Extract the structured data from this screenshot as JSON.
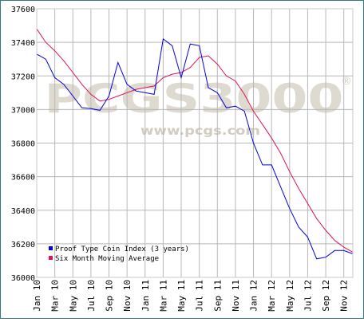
{
  "watermark": {
    "brand": "PCGS3000",
    "registered": "®",
    "url": "www.pcgs.com"
  },
  "colors": {
    "index_line": "#0000dd",
    "average_line": "#e0105a",
    "frame": "#2e7d7a",
    "grid": "#b8b8b8"
  },
  "chart_data": {
    "type": "line",
    "title": "",
    "xlabel": "",
    "ylabel": "",
    "ylim": [
      36000,
      37600
    ],
    "yticks": [
      36000,
      36200,
      36400,
      36600,
      36800,
      37000,
      37200,
      37400,
      37600
    ],
    "x_labels": [
      "Jan 10",
      "Mar 10",
      "May 10",
      "Jul 10",
      "Sep 10",
      "Nov 10",
      "Jan 11",
      "Mar 11",
      "May 11",
      "Jul 11",
      "Sep 11",
      "Nov 11",
      "Jan 12",
      "Mar 12",
      "May 12",
      "Jul 12",
      "Sep 12",
      "Nov 12"
    ],
    "grid": true,
    "legend_position": "bottom-left",
    "series": [
      {
        "name": "Proof Type Coin Index (3 years)",
        "color": "#0000dd",
        "values": [
          37330,
          37300,
          37190,
          37150,
          37080,
          37010,
          37005,
          36995,
          37080,
          37280,
          37150,
          37110,
          37100,
          37090,
          37420,
          37380,
          37190,
          37390,
          37380,
          37130,
          37100,
          37010,
          37020,
          36990,
          36800,
          36670,
          36670,
          36540,
          36410,
          36300,
          36240,
          36110,
          36120,
          36160,
          36160,
          36140
        ]
      },
      {
        "name": "Six Month Moving Average",
        "color": "#e0105a",
        "values": [
          37480,
          37400,
          37350,
          37290,
          37220,
          37150,
          37090,
          37050,
          37060,
          37080,
          37100,
          37120,
          37130,
          37140,
          37190,
          37210,
          37220,
          37250,
          37310,
          37320,
          37270,
          37200,
          37170,
          37090,
          36990,
          36910,
          36830,
          36740,
          36630,
          36530,
          36440,
          36350,
          36280,
          36220,
          36180,
          36150
        ]
      }
    ]
  }
}
